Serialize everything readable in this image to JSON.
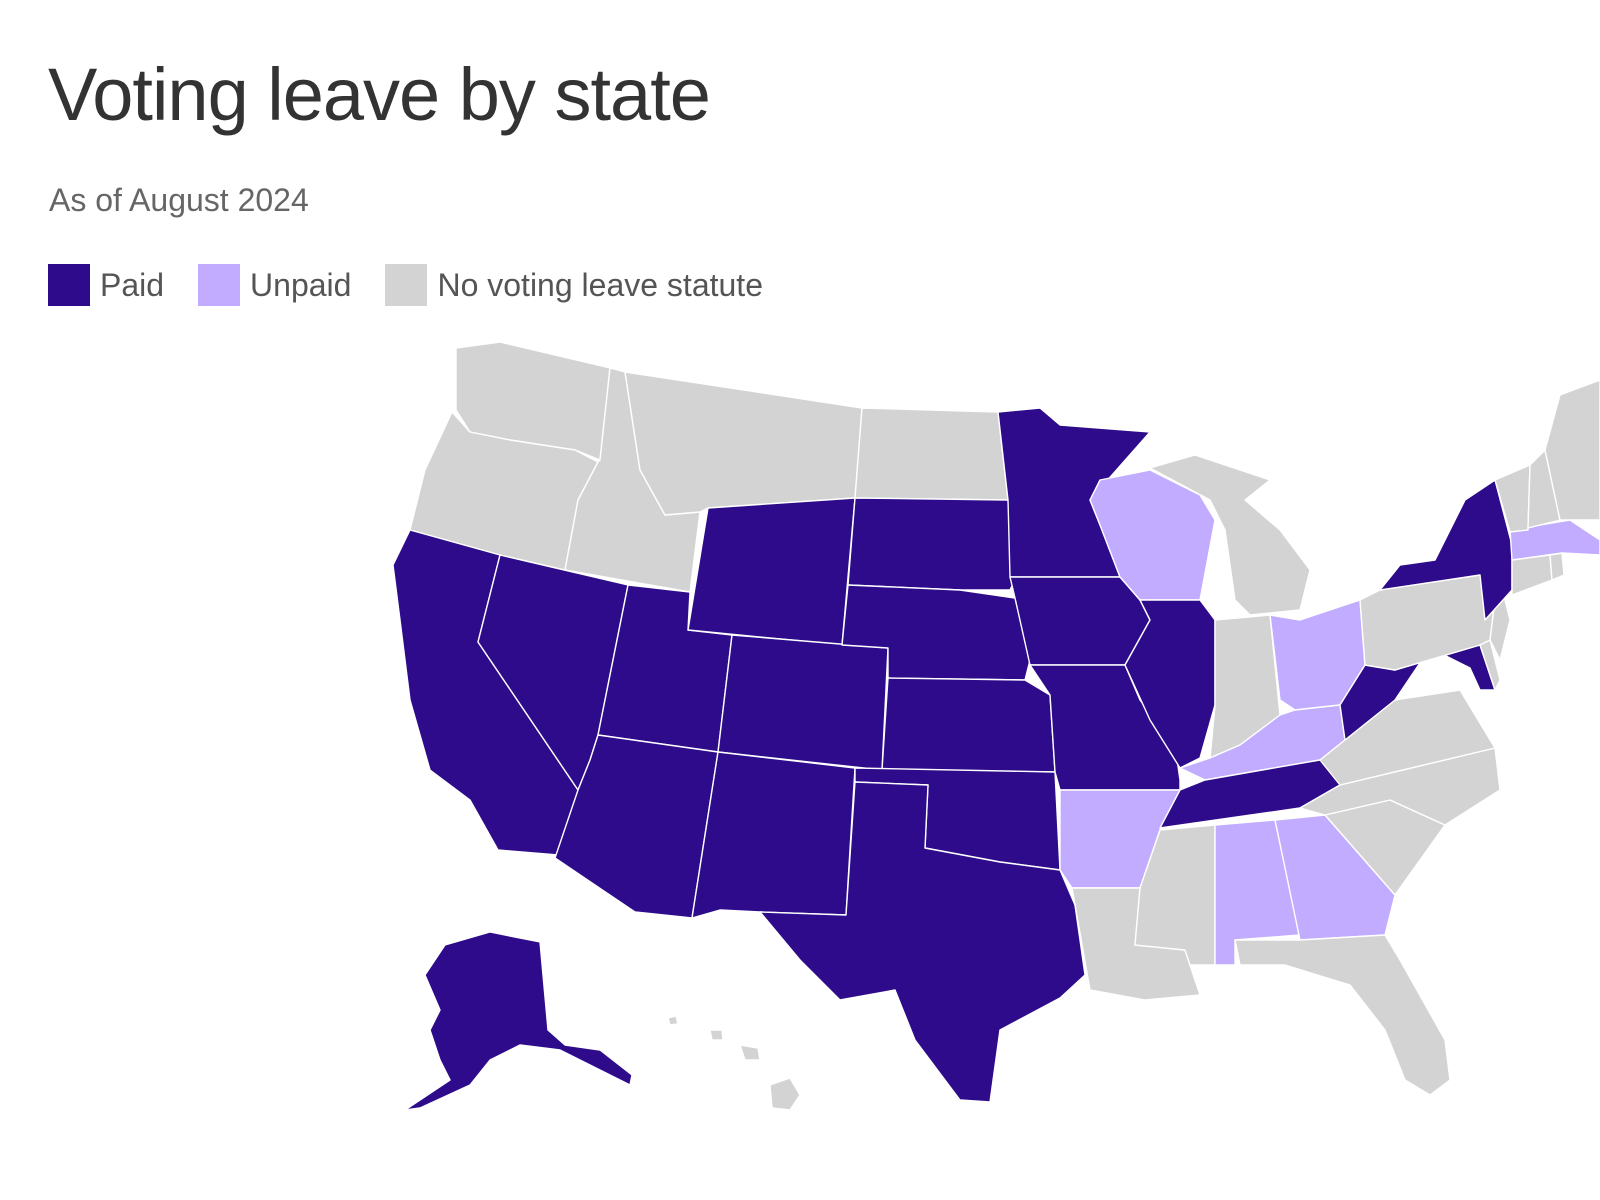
{
  "header": {
    "title": "Voting leave by state",
    "subtitle": "As of August 2024"
  },
  "legend": [
    {
      "key": "paid",
      "label": "Paid",
      "color": "#2d0b8a"
    },
    {
      "key": "unpaid",
      "label": "Unpaid",
      "color": "#c2acff"
    },
    {
      "key": "none",
      "label": "No voting leave statute",
      "color": "#d2d3d2"
    }
  ],
  "states": {
    "WA": "none",
    "OR": "none",
    "ID": "none",
    "MT": "none",
    "ND": "none",
    "CA": "paid",
    "NV": "paid",
    "UT": "paid",
    "AZ": "paid",
    "WY": "paid",
    "CO": "paid",
    "NM": "paid",
    "SD": "paid",
    "NE": "paid",
    "KS": "paid",
    "OK": "paid",
    "TX": "paid",
    "MN": "paid",
    "IA": "paid",
    "MO": "paid",
    "IL": "paid",
    "TN": "paid",
    "WV": "paid",
    "MD": "paid",
    "NY": "paid",
    "AK": "paid",
    "WI": "unpaid",
    "OH": "unpaid",
    "KY": "unpaid",
    "AR": "unpaid",
    "AL": "unpaid",
    "GA": "unpaid",
    "MA": "unpaid",
    "MI": "none",
    "IN": "none",
    "LA": "none",
    "MS": "none",
    "FL": "none",
    "SC": "none",
    "NC": "none",
    "VA": "none",
    "PA": "none",
    "NJ": "none",
    "DE": "none",
    "CT": "none",
    "RI": "none",
    "VT": "none",
    "NH": "none",
    "ME": "none",
    "HI": "none"
  }
}
